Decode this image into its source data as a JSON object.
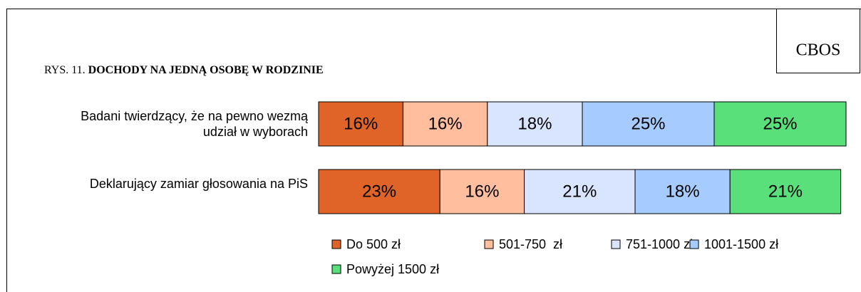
{
  "chart_data": {
    "type": "stacked-bar-horizontal",
    "source": "CBOS",
    "figure_label": "RYS. 11.",
    "title": "DOCHODY NA JEDNĄ OSOBĘ W RODZINIE",
    "categories": [
      "Badani twierdzący, że na pewno wezmą udział w wyborach",
      "Deklarujący zamiar głosowania na PiS"
    ],
    "xlim": [
      0,
      100
    ],
    "series": [
      {
        "name": "Do 500 zł",
        "color": "#E06428",
        "values": [
          16,
          23
        ],
        "value_labels": [
          "16%",
          "23%"
        ]
      },
      {
        "name": "501-750  zł",
        "color": "#FFBE9E",
        "values": [
          16,
          16
        ],
        "value_labels": [
          "16%",
          "16%"
        ]
      },
      {
        "name": "751-1000 zł",
        "color": "#D9E5FF",
        "values": [
          18,
          21
        ],
        "value_labels": [
          "18%",
          "21%"
        ]
      },
      {
        "name": "1001-1500 zł",
        "color": "#A6CCFF",
        "values": [
          25,
          18
        ],
        "value_labels": [
          "25%",
          "18%"
        ]
      },
      {
        "name": "Powyżej 1500 zł",
        "color": "#59E07A",
        "values": [
          25,
          21
        ],
        "value_labels": [
          "25%",
          "21%"
        ]
      }
    ]
  }
}
